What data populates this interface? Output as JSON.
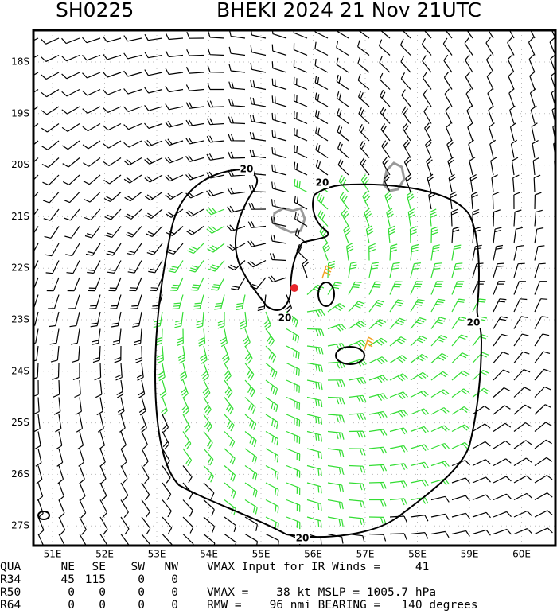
{
  "header": {
    "id": "SH0225",
    "title": "BHEKI 2024 21 Nov 21UTC"
  },
  "lat_labels": [
    "18S",
    "19S",
    "20S",
    "21S",
    "22S",
    "23S",
    "24S",
    "25S",
    "26S",
    "27S"
  ],
  "lon_labels": [
    "51E",
    "52E",
    "53E",
    "54E",
    "55E",
    "56E",
    "57E",
    "58E",
    "59E",
    "60E"
  ],
  "contour_labels": [
    "20",
    "20",
    "20",
    "20",
    "20"
  ],
  "table": {
    "header": [
      "QUA",
      "NE",
      "SE",
      "SW",
      "NW"
    ],
    "rows": [
      [
        "R34",
        45,
        115,
        0,
        0
      ],
      [
        "R50",
        0,
        0,
        0,
        0
      ],
      [
        "R64",
        0,
        0,
        0,
        0
      ]
    ]
  },
  "info": [
    "VMAX Input for IR Winds =     41",
    "VMAX =    38 kt MSLP = 1005.7 hPa",
    "RMW =    96 nmi BEARING =   140 degrees"
  ]
}
